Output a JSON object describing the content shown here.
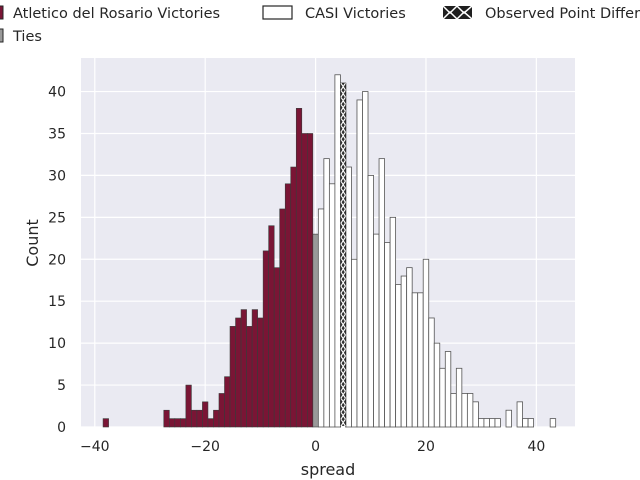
{
  "chart_data": {
    "type": "bar",
    "title": "",
    "xlabel": "spread",
    "ylabel": "Count",
    "xlim": [
      -42.5,
      47
    ],
    "ylim": [
      0,
      44
    ],
    "xticks": [
      -40,
      -20,
      0,
      20,
      40
    ],
    "yticks": [
      0,
      5,
      10,
      15,
      20,
      25,
      30,
      35,
      40
    ],
    "grid": true,
    "legend_placement": "top",
    "bin_width": 1,
    "series": [
      {
        "name": "Atletico del Rosario Victories",
        "color": "#7a1535",
        "x": [
          -38,
          -27,
          -26,
          -25,
          -24,
          -23,
          -22,
          -21,
          -20,
          -19,
          -18,
          -17,
          -16,
          -15,
          -14,
          -13,
          -12,
          -11,
          -10,
          -9,
          -8,
          -7,
          -6,
          -5,
          -4,
          -3,
          -2,
          -1
        ],
        "values": [
          1,
          2,
          1,
          1,
          1,
          5,
          2,
          2,
          3,
          1,
          2,
          4,
          6,
          12,
          13,
          14,
          12,
          14,
          13,
          21,
          24,
          19,
          26,
          29,
          31,
          38,
          35,
          35
        ]
      },
      {
        "name": "Ties",
        "color": "#999999",
        "x": [
          0
        ],
        "values": [
          23
        ]
      },
      {
        "name": "CASI Victories",
        "color": "#ffffff",
        "x": [
          1,
          2,
          3,
          4,
          5,
          6,
          7,
          8,
          9,
          10,
          11,
          12,
          13,
          14,
          15,
          16,
          17,
          18,
          19,
          20,
          21,
          22,
          23,
          24,
          25,
          26,
          27,
          28,
          29,
          30,
          31,
          32,
          33,
          35,
          37,
          38,
          39,
          43
        ],
        "values": [
          26,
          32,
          29,
          42,
          41,
          31,
          20,
          39,
          40,
          30,
          23,
          32,
          22,
          25,
          17,
          18,
          19,
          16,
          16,
          20,
          13,
          10,
          7,
          9,
          4,
          7,
          4,
          4,
          3,
          1,
          1,
          1,
          1,
          2,
          3,
          1,
          1,
          1
        ]
      }
    ],
    "observed_point_differential": {
      "name": "Observed Point Differential",
      "x": 5,
      "value": 41
    }
  }
}
